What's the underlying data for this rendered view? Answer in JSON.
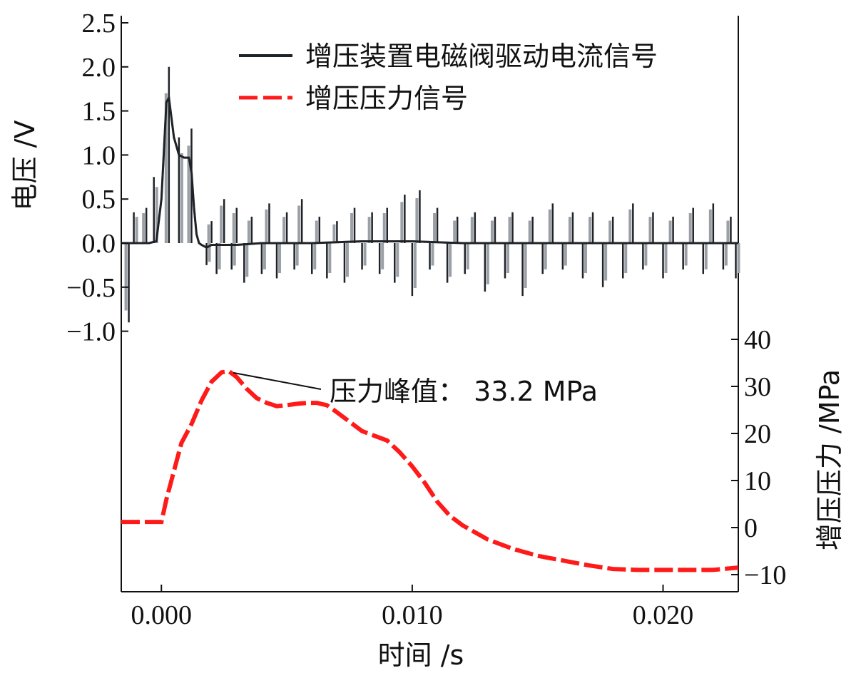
{
  "chart_data": {
    "type": "line",
    "x": {
      "label": "时间 /s",
      "ticks": [
        0.0,
        0.01,
        0.02
      ],
      "tick_labels": [
        "0.000",
        "0.010",
        "0.020"
      ],
      "range": [
        -0.0016,
        0.023
      ]
    },
    "y_left": {
      "label": "电压 /V",
      "ticks": [
        -1.0,
        -0.5,
        0.0,
        0.5,
        1.0,
        1.5,
        2.0,
        2.5
      ],
      "tick_labels": [
        "−1.0",
        "−0.5",
        "0.0",
        "0.5",
        "1.0",
        "1.5",
        "2.0",
        "2.5"
      ],
      "range": [
        -1.1,
        2.5
      ]
    },
    "y_right": {
      "label": "增压压力 /MPa",
      "ticks": [
        -10,
        0,
        10,
        20,
        30,
        40
      ],
      "tick_labels": [
        "−10",
        "0",
        "10",
        "20",
        "30",
        "40"
      ],
      "range": [
        -14,
        44
      ]
    },
    "series": [
      {
        "name": "增压装置电磁阀驱动电流信号",
        "axis": "left",
        "color": "#1f2328",
        "style": "solid",
        "x": [
          -0.0016,
          -0.001,
          -0.0005,
          -0.0002,
          0.0,
          0.0002,
          0.0003,
          0.0005,
          0.0007,
          0.0009,
          0.001,
          0.0011,
          0.0012,
          0.0013,
          0.0014,
          0.0015,
          0.0016,
          0.0018,
          0.002,
          0.003,
          0.004,
          0.005,
          0.006,
          0.008,
          0.01,
          0.012,
          0.014,
          0.016,
          0.018,
          0.02,
          0.022,
          0.023
        ],
        "values": [
          0.0,
          0.0,
          0.0,
          0.02,
          0.5,
          1.6,
          1.65,
          1.2,
          1.0,
          0.97,
          0.97,
          0.97,
          0.8,
          0.4,
          0.1,
          0.0,
          -0.02,
          -0.05,
          -0.02,
          -0.02,
          0.0,
          0.0,
          0.0,
          0.02,
          0.02,
          0.0,
          0.0,
          0.0,
          0.0,
          0.0,
          0.0,
          0.0
        ],
        "spikes": [
          [
            -0.0013,
            -0.9
          ],
          [
            -0.0011,
            0.35
          ],
          [
            -0.0006,
            0.4
          ],
          [
            -0.0003,
            0.75
          ],
          [
            0.0003,
            2.0
          ],
          [
            0.0007,
            1.2
          ],
          [
            0.0012,
            1.3
          ],
          [
            0.0018,
            -0.25
          ],
          [
            0.002,
            0.25
          ],
          [
            0.0022,
            -0.35
          ],
          [
            0.0025,
            0.5
          ],
          [
            0.0028,
            -0.3
          ],
          [
            0.003,
            0.4
          ],
          [
            0.0033,
            -0.45
          ],
          [
            0.0036,
            0.3
          ],
          [
            0.004,
            -0.35
          ],
          [
            0.0043,
            0.45
          ],
          [
            0.0046,
            -0.4
          ],
          [
            0.005,
            0.35
          ],
          [
            0.0053,
            -0.3
          ],
          [
            0.0056,
            0.5
          ],
          [
            0.006,
            -0.35
          ],
          [
            0.0063,
            0.3
          ],
          [
            0.0066,
            -0.4
          ],
          [
            0.007,
            0.25
          ],
          [
            0.0073,
            -0.45
          ],
          [
            0.0077,
            0.4
          ],
          [
            0.008,
            -0.3
          ],
          [
            0.0084,
            0.35
          ],
          [
            0.0087,
            -0.35
          ],
          [
            0.009,
            0.4
          ],
          [
            0.0093,
            -0.45
          ],
          [
            0.0097,
            0.55
          ],
          [
            0.01,
            -0.6
          ],
          [
            0.0103,
            0.6
          ],
          [
            0.0107,
            -0.3
          ],
          [
            0.011,
            0.4
          ],
          [
            0.0114,
            -0.45
          ],
          [
            0.0118,
            0.3
          ],
          [
            0.0121,
            -0.35
          ],
          [
            0.0125,
            0.35
          ],
          [
            0.0129,
            -0.55
          ],
          [
            0.0133,
            0.3
          ],
          [
            0.0137,
            -0.4
          ],
          [
            0.014,
            0.35
          ],
          [
            0.0144,
            -0.6
          ],
          [
            0.0148,
            0.3
          ],
          [
            0.0152,
            -0.35
          ],
          [
            0.0156,
            0.45
          ],
          [
            0.016,
            -0.3
          ],
          [
            0.0164,
            0.35
          ],
          [
            0.0168,
            -0.4
          ],
          [
            0.0172,
            0.35
          ],
          [
            0.0176,
            -0.5
          ],
          [
            0.018,
            0.3
          ],
          [
            0.0184,
            -0.4
          ],
          [
            0.0188,
            0.45
          ],
          [
            0.0192,
            -0.3
          ],
          [
            0.0196,
            0.35
          ],
          [
            0.02,
            -0.4
          ],
          [
            0.0204,
            0.3
          ],
          [
            0.0208,
            -0.3
          ],
          [
            0.0212,
            0.4
          ],
          [
            0.0216,
            -0.35
          ],
          [
            0.022,
            0.45
          ],
          [
            0.0224,
            -0.3
          ],
          [
            0.0227,
            0.3
          ],
          [
            0.0229,
            -0.4
          ]
        ]
      },
      {
        "name": "增压压力信号",
        "axis": "right",
        "color": "#ff1a1a",
        "style": "dashed",
        "x": [
          -0.0016,
          -0.001,
          -0.0005,
          0.0,
          0.0002,
          0.0005,
          0.0008,
          0.0012,
          0.0016,
          0.002,
          0.0024,
          0.0027,
          0.003,
          0.0034,
          0.0038,
          0.0042,
          0.0046,
          0.005,
          0.0054,
          0.0058,
          0.0062,
          0.0066,
          0.007,
          0.0075,
          0.008,
          0.0085,
          0.009,
          0.0095,
          0.01,
          0.0105,
          0.011,
          0.0115,
          0.012,
          0.013,
          0.014,
          0.015,
          0.016,
          0.017,
          0.018,
          0.019,
          0.02,
          0.021,
          0.022,
          0.023
        ],
        "values": [
          1.2,
          1.2,
          1.2,
          1.2,
          6,
          12,
          18,
          22,
          27,
          31,
          33,
          33.2,
          32,
          29.5,
          27.5,
          26.5,
          25.8,
          26.0,
          26.3,
          26.5,
          26.5,
          26.0,
          24.5,
          22.5,
          20.5,
          19.5,
          18.5,
          16.0,
          13.0,
          9.5,
          5.5,
          2.5,
          0.5,
          -2.5,
          -4.5,
          -6.0,
          -7.0,
          -8.0,
          -8.8,
          -9.0,
          -9.0,
          -9.0,
          -9.0,
          -8.5
        ]
      }
    ],
    "annotation": {
      "text": "压力峰值：  33.2 MPa",
      "x": 0.0027,
      "y": 33.2,
      "axis": "right"
    },
    "legend": {
      "position": "top-right"
    },
    "grid": false
  }
}
